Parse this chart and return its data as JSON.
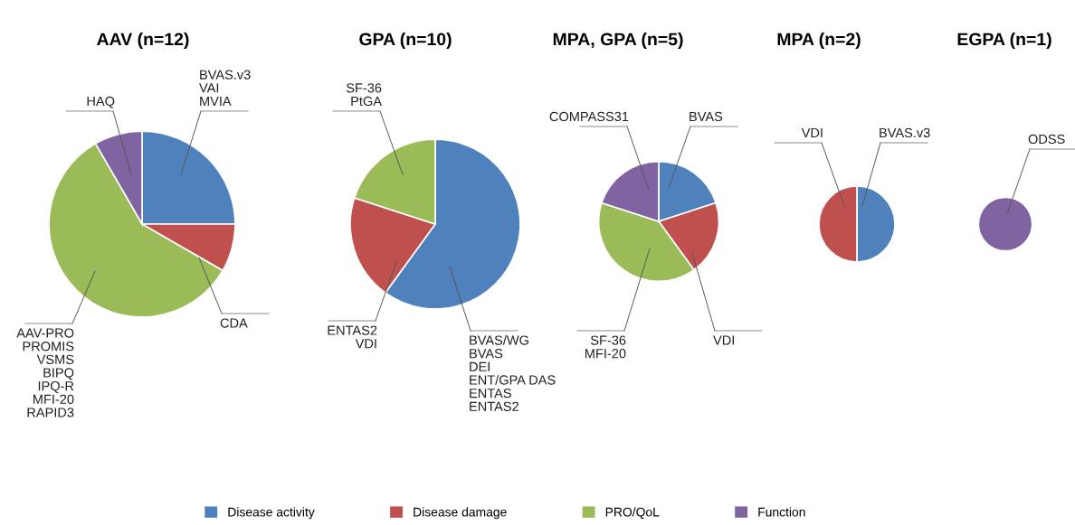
{
  "chart_data": [
    {
      "type": "pie",
      "title": "AAV (n=12)",
      "categories": [
        "Disease activity",
        "Disease damage",
        "PRO/QoL",
        "Function"
      ],
      "values": [
        25,
        8.33,
        58.34,
        8.33
      ],
      "colors": [
        "#4f81bd",
        "#c0504d",
        "#9bbb59",
        "#8064a2"
      ],
      "value_labels": [
        "BVAS.v3\nVAI\nMVIA",
        "CDA",
        "AAV-PRO\nPROMIS\nVSMS\nBIPQ\nIPQ-R\nMFI-20\nRAPID3",
        "HAQ"
      ],
      "legend": "bottom"
    },
    {
      "type": "pie",
      "title": "GPA (n=10)",
      "categories": [
        null,
        null,
        null
      ],
      "values": [
        60,
        20,
        20
      ],
      "colors": [
        "#4f81bd",
        "#c0504d",
        "#9bbb59"
      ],
      "value_labels": [
        "BVAS/WG\nBVAS\nDEI\nENT/GPA DAS\nENTAS\nENTAS2",
        "ENTAS2\nVDI",
        "SF-36\nPtGA"
      ]
    },
    {
      "type": "pie",
      "title": "MPA, GPA (n=5)",
      "categories": [
        null,
        null,
        null,
        null
      ],
      "values": [
        20,
        20,
        40,
        20
      ],
      "colors": [
        "#4f81bd",
        "#c0504d",
        "#9bbb59",
        "#8064a2"
      ],
      "value_labels": [
        "BVAS",
        "VDI",
        "SF-36\nMFI-20",
        "COMPASS31"
      ]
    },
    {
      "type": "pie",
      "title": "MPA (n=2)",
      "categories": [
        null,
        null
      ],
      "values": [
        50,
        50
      ],
      "colors": [
        "#4f81bd",
        "#c0504d"
      ],
      "value_labels": [
        "BVAS.v3",
        "VDI"
      ]
    },
    {
      "type": "pie",
      "title": "EGPA (n=1)",
      "categories": [
        null
      ],
      "values": [
        100
      ],
      "colors": [
        "#8064a2"
      ],
      "value_labels": [
        "ODSS"
      ]
    }
  ]
}
